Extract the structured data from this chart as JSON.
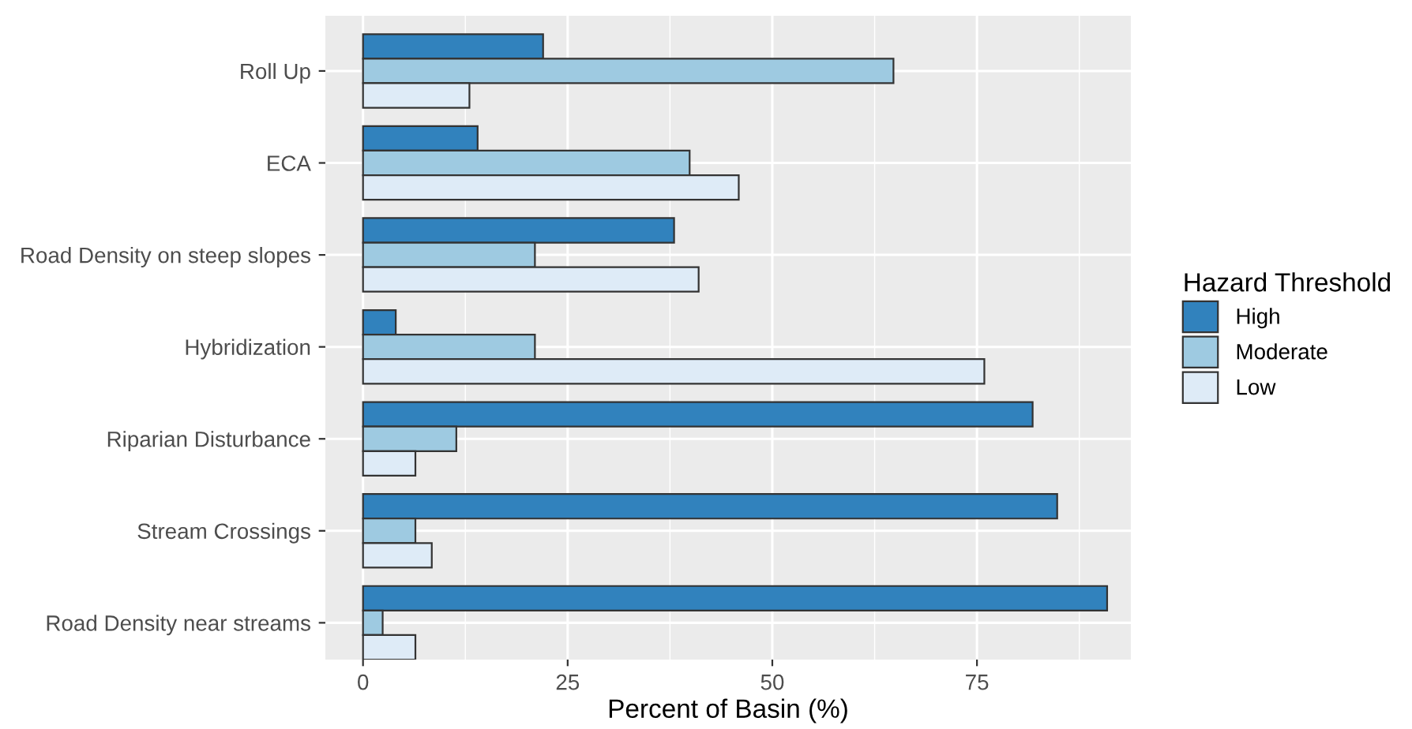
{
  "chart_data": {
    "type": "bar",
    "orientation": "horizontal",
    "xlabel": "Percent of Basin (%)",
    "legend_title": "Hazard Threshold",
    "legend": "right",
    "grid": true,
    "categories": [
      "Roll Up",
      "ECA",
      "Road Density on steep slopes",
      "Hybridization",
      "Riparian Disturbance",
      "Stream Crossings",
      "Road Density near streams"
    ],
    "series": [
      {
        "name": "High",
        "color": "#3182bd",
        "values": [
          22,
          14,
          38,
          4,
          81.8,
          84.8,
          90.9
        ]
      },
      {
        "name": "Moderate",
        "color": "#9ecae1",
        "values": [
          64.8,
          39.9,
          21,
          21,
          11.4,
          6.4,
          2.4
        ]
      },
      {
        "name": "Low",
        "color": "#deebf7",
        "values": [
          13,
          45.9,
          41,
          75.9,
          6.4,
          8.4,
          6.4
        ]
      }
    ],
    "xlim": [
      -4.6,
      93.8
    ],
    "xticks": [
      0,
      25,
      50,
      75
    ]
  }
}
